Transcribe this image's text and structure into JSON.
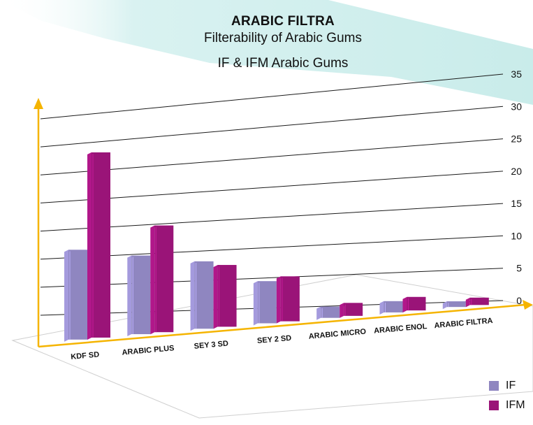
{
  "chart_data": {
    "type": "bar",
    "title": "ARABIC FILTRA",
    "subtitle": "Filterability of Arabic Gums",
    "series_title": "IF & IFM Arabic Gums",
    "categories": [
      "KDF SD",
      "ARABIC PLUS",
      "SEY 3 SD",
      "SEY 2 SD",
      "ARABIC MICRO",
      "ARABIC ENOL",
      "ARABIC FILTRA"
    ],
    "series": [
      {
        "name": "IF",
        "values": [
          16,
          14,
          12,
          7.5,
          2.0,
          2.0,
          1.0
        ]
      },
      {
        "name": "IFM",
        "values": [
          33,
          19,
          11,
          8,
          2.3,
          2.4,
          1.3
        ]
      }
    ],
    "yticks": [
      0,
      5,
      10,
      15,
      20,
      25,
      30,
      35
    ],
    "ylim": [
      0,
      35
    ],
    "grid": true,
    "legend_position": "bottom-right",
    "colors": {
      "IF": "#8f86c0",
      "IFM": "#9a1478",
      "axis": "#f5b400",
      "banner": "#cdeeed"
    }
  }
}
